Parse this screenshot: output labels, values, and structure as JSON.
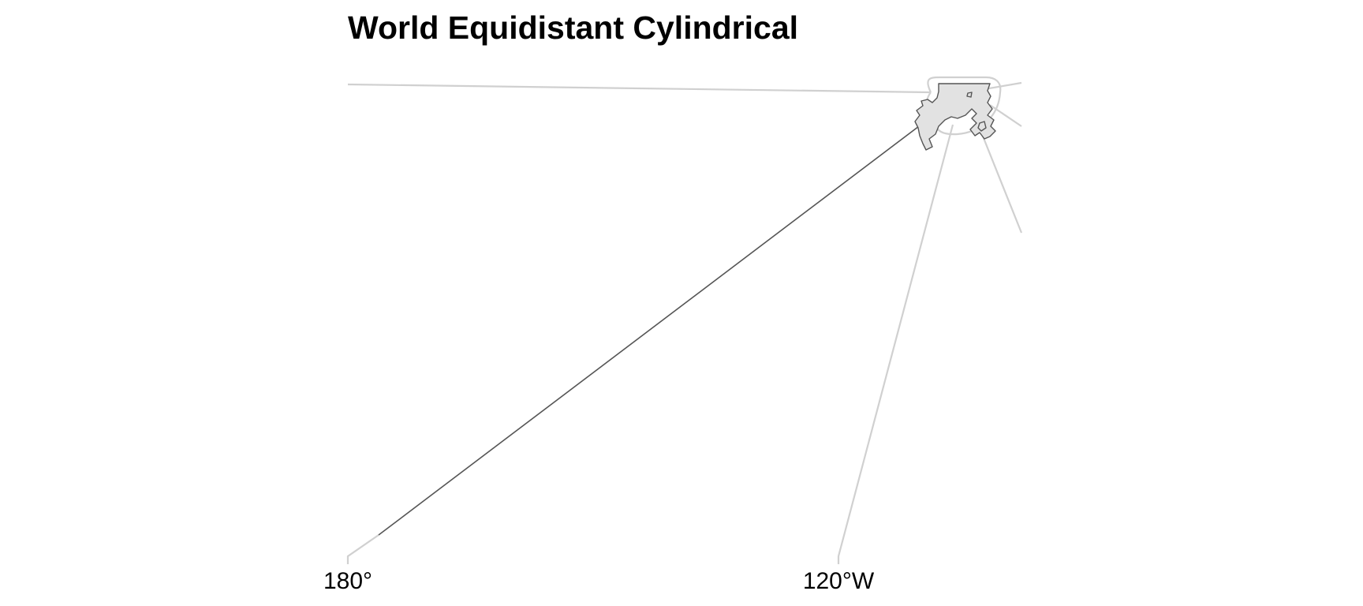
{
  "title": "World Equidistant Cylindrical",
  "axis": {
    "x_tick_labels": [
      "180°",
      "120°W"
    ]
  },
  "colors": {
    "land_fill": "#e2e2e2",
    "land_stroke": "#555555",
    "graticule": "#d0d0d0",
    "text": "#000000"
  }
}
